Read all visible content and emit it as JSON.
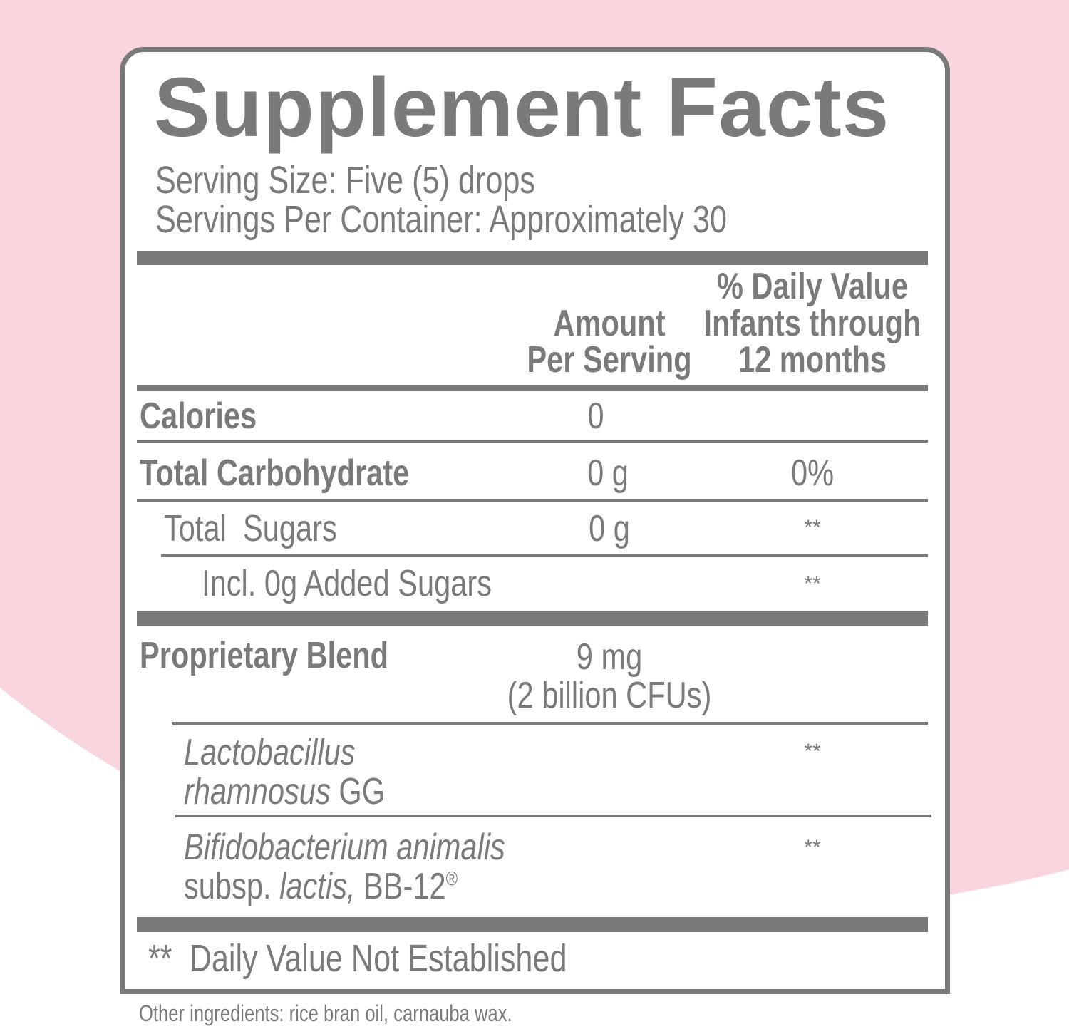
{
  "colors": {
    "text": "#7a7a7b",
    "background_accent": "#f9d6de",
    "panel": "#ffffff"
  },
  "title": "Supplement Facts",
  "serving_size": "Serving Size: Five (5) drops",
  "servings_per_container": "Servings Per Container: Approximately 30",
  "header": {
    "amount_line1": "Amount",
    "amount_line2": "Per Serving",
    "dv_line1": "% Daily Value",
    "dv_line2": "Infants through",
    "dv_line3": "12 months"
  },
  "rows": [
    {
      "name": "Calories",
      "amount": "0",
      "dv": ""
    },
    {
      "name": "Total Carbohydrate",
      "amount": "0 g",
      "dv": "0%"
    },
    {
      "name": "Total  Sugars",
      "amount": "0 g",
      "dv": "**"
    },
    {
      "name": "Incl. 0g Added Sugars",
      "amount": "",
      "dv": "**"
    }
  ],
  "blend": {
    "name": "Proprietary Blend",
    "amount_line1": "9 mg",
    "amount_line2": "(2 billion CFUs)",
    "strains": [
      {
        "italic1": "Lactobacillus",
        "italic2": "rhamnosus",
        "suffix": " GG",
        "dv": "**"
      },
      {
        "italic1": "Bifidobacterium animalis",
        "prefix2": "subsp. ",
        "italic2": "lactis,",
        "suffix": " BB-12",
        "mark": "®",
        "dv": "**"
      }
    ]
  },
  "footnote": "**  Daily Value Not Established",
  "other_ingredients": "Other ingredients: rice bran oil, carnauba wax."
}
